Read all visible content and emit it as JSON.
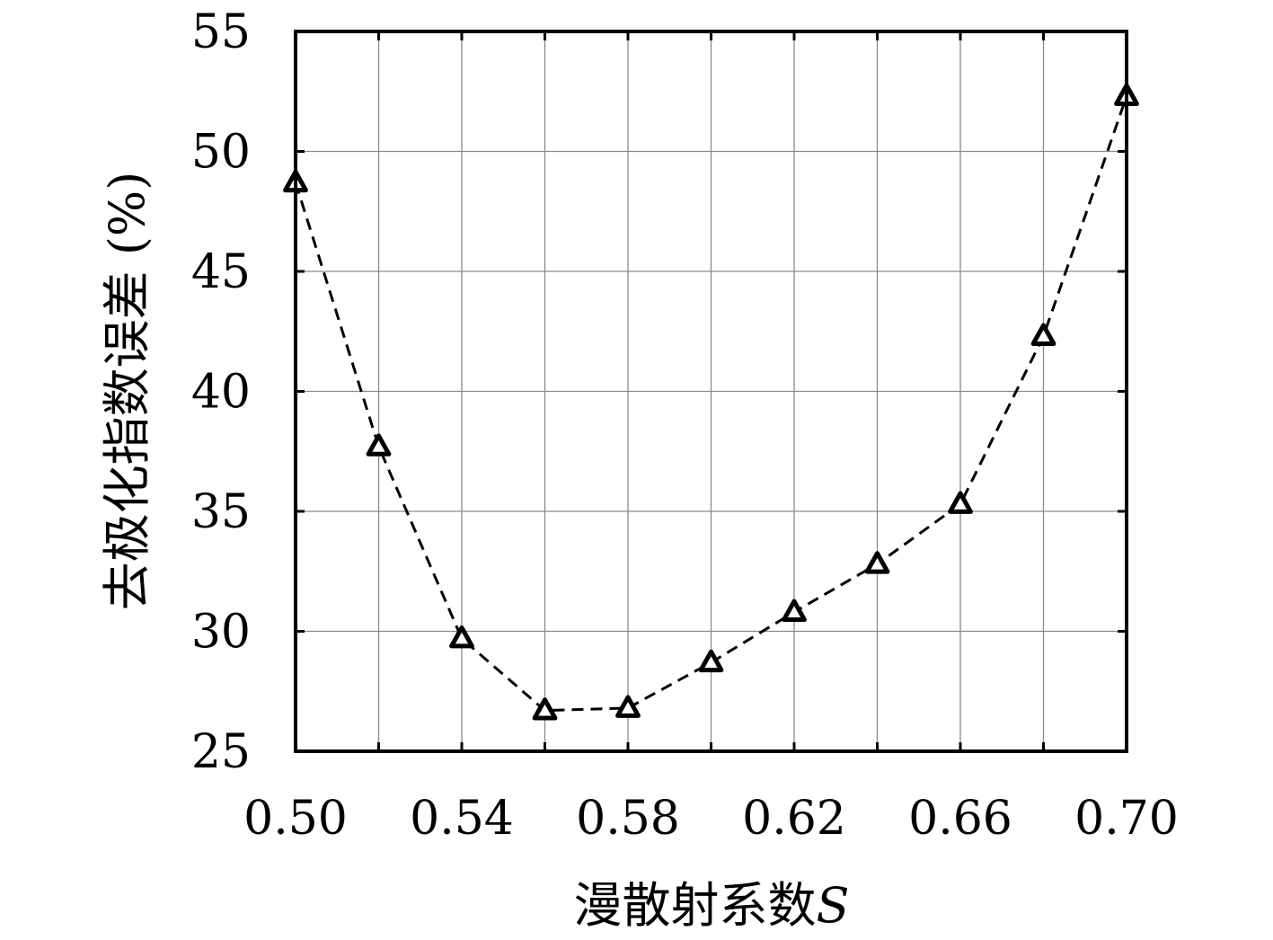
{
  "chart_data": {
    "type": "line",
    "title": "",
    "xlabel": "漫散射系数",
    "xlabel_symbol": "S",
    "ylabel": "去极化指数误差 (%)",
    "xlim": [
      0.5,
      0.7
    ],
    "ylim": [
      25,
      55
    ],
    "x_ticks": [
      0.5,
      0.54,
      0.58,
      0.62,
      0.66,
      0.7
    ],
    "x_tick_labels": [
      "0.50",
      "0.54",
      "0.58",
      "0.62",
      "0.66",
      "0.70"
    ],
    "x_grid": [
      0.5,
      0.52,
      0.54,
      0.56,
      0.58,
      0.6,
      0.62,
      0.64,
      0.66,
      0.68,
      0.7
    ],
    "y_ticks": [
      25,
      30,
      35,
      40,
      45,
      50,
      55
    ],
    "y_tick_labels": [
      "25",
      "30",
      "35",
      "40",
      "45",
      "50",
      "55"
    ],
    "grid": true,
    "series": [
      {
        "line_style": "dashed",
        "marker": "triangle",
        "color": "#000000",
        "x": [
          0.5,
          0.52,
          0.54,
          0.56,
          0.58,
          0.6,
          0.62,
          0.64,
          0.66,
          0.68,
          0.7
        ],
        "y": [
          48.7,
          37.7,
          29.7,
          26.7,
          26.8,
          28.7,
          30.8,
          32.8,
          35.3,
          42.3,
          52.3
        ]
      }
    ]
  }
}
